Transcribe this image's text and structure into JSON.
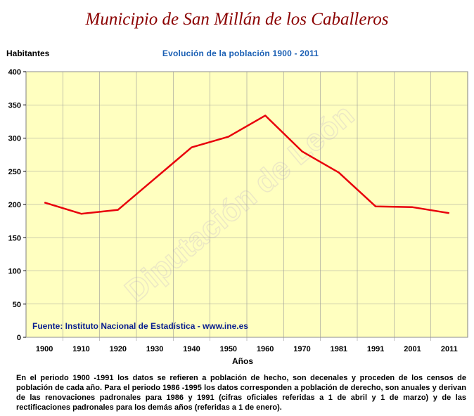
{
  "page": {
    "title": "Municipio de San Millán de los Caballeros",
    "source": "Fuente: Instituto Nacional de Estadística - www.ine.es",
    "watermark": "Diputación de León",
    "note": "En el periodo 1900 -1991 los datos se refieren a población de hecho, son decenales y proceden de los censos de población de cada año. Para el periodo 1986 -1995 los datos corresponden a población de derecho, son anuales y derivan de las renovaciones padronales para 1986 y 1991 (cifras oficiales referidas a 1 de abril y 1 de marzo) y de las rectificaciones padronales para los demás años (referidas a 1 de enero)."
  },
  "colors": {
    "title": "#8b0000",
    "subtitle": "#1a5fb4",
    "plot_bg": "#ffffc0",
    "line": "#e8000b",
    "grid": "#999999",
    "source": "#0a1f8f"
  },
  "chart_data": {
    "type": "line",
    "title": "Evolución de la población 1900 - 2011",
    "ylabel": "Habitantes",
    "xlabel": "Años",
    "categories": [
      "1900",
      "1910",
      "1920",
      "1930",
      "1940",
      "1950",
      "1960",
      "1970",
      "1981",
      "1991",
      "2001",
      "2011"
    ],
    "series": [
      {
        "values": [
          203,
          186,
          192,
          239,
          286,
          302,
          334,
          280,
          248,
          197,
          196,
          187
        ]
      }
    ],
    "ylim": [
      0,
      400
    ],
    "yticks": [
      0,
      50,
      100,
      150,
      200,
      250,
      300,
      350,
      400
    ],
    "grid": true,
    "legend": "none"
  }
}
